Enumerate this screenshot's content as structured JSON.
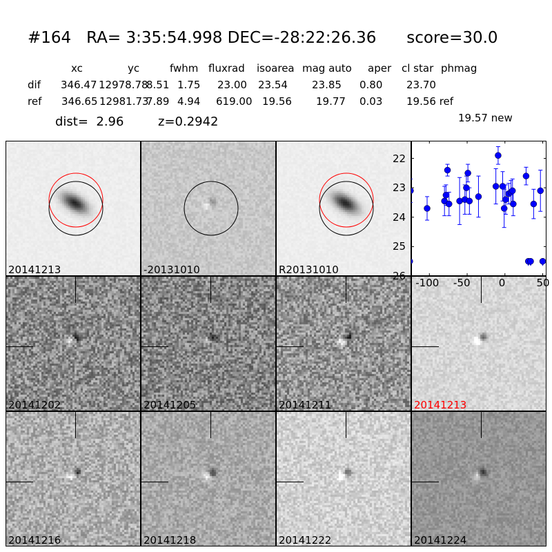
{
  "header": {
    "title": "#164   RA= 3:35:54.998 DEC=-28:22:26.36      score=30.0",
    "columns": [
      "xc",
      "yc",
      "fwhm",
      "fluxrad",
      "isoarea",
      "mag auto",
      "aper",
      "cl star",
      "phmag"
    ],
    "rows": [
      {
        "label": "dif",
        "values": [
          "346.47",
          "12978.78",
          "8.51",
          "1.75",
          "23.00",
          "23.54",
          "23.85",
          "0.80",
          "23.70"
        ]
      },
      {
        "label": "ref",
        "values": [
          "346.65",
          "12981.73",
          "7.89",
          "4.94",
          "619.00",
          "19.56",
          "19.77",
          "0.03",
          "19.56 ref"
        ]
      }
    ],
    "extra_phmag": "19.57 new",
    "dist": "dist=  2.96",
    "z": "z=0.2942"
  },
  "stamps_top": [
    {
      "label": "20141213",
      "circles": [
        "red",
        "black"
      ]
    },
    {
      "label": "-20131010",
      "circles": [
        "black"
      ]
    },
    {
      "label": "R20131010",
      "circles": [
        "red",
        "black"
      ]
    }
  ],
  "stamps_grid": [
    {
      "label": "20141202",
      "highlight": false
    },
    {
      "label": "20141205",
      "highlight": false
    },
    {
      "label": "20141211",
      "highlight": false
    },
    {
      "label": "20141213",
      "highlight": true
    },
    {
      "label": "20141216",
      "highlight": false
    },
    {
      "label": "20141218",
      "highlight": false
    },
    {
      "label": "20141222",
      "highlight": false
    },
    {
      "label": "20141224",
      "highlight": false
    }
  ],
  "chart_data": {
    "type": "scatter",
    "xlim": [
      -124,
      55
    ],
    "ylim": [
      26,
      21.4
    ],
    "y_inverted": true,
    "xticks": [
      -100,
      -50,
      0,
      50
    ],
    "yticks": [
      22,
      23,
      24,
      25,
      26
    ],
    "color": "#0000ff",
    "points": [
      {
        "x": -125,
        "y": 23.1,
        "err": 0.4
      },
      {
        "x": -103,
        "y": 23.7,
        "err": 0.4
      },
      {
        "x": -80,
        "y": 23.45,
        "err": 0.5
      },
      {
        "x": -78,
        "y": 23.25,
        "err": 0.35
      },
      {
        "x": -76,
        "y": 22.4,
        "err": 0.2
      },
      {
        "x": -74,
        "y": 23.55,
        "err": 0.4
      },
      {
        "x": -60,
        "y": 23.45,
        "err": 0.8
      },
      {
        "x": -53,
        "y": 23.4,
        "err": 0.5
      },
      {
        "x": -51,
        "y": 23.0,
        "err": 0.4
      },
      {
        "x": -49,
        "y": 22.5,
        "err": 0.3
      },
      {
        "x": -47,
        "y": 23.45,
        "err": 0.45
      },
      {
        "x": -35,
        "y": 23.3,
        "err": 0.7
      },
      {
        "x": -12,
        "y": 22.95,
        "err": 0.6
      },
      {
        "x": -9,
        "y": 21.9,
        "err": 0.3
      },
      {
        "x": -3,
        "y": 22.95,
        "err": 0.5
      },
      {
        "x": -1,
        "y": 23.7,
        "err": 0.65
      },
      {
        "x": 1,
        "y": 23.4,
        "err": 0.5
      },
      {
        "x": 5,
        "y": 23.2,
        "err": 0.35
      },
      {
        "x": 8,
        "y": 23.15,
        "err": 0.4
      },
      {
        "x": 10,
        "y": 23.1,
        "err": 0.4
      },
      {
        "x": 11,
        "y": 23.55,
        "err": 0.4
      },
      {
        "x": 28,
        "y": 22.6,
        "err": 0.3
      },
      {
        "x": 38,
        "y": 23.55,
        "err": 0.5
      },
      {
        "x": 47,
        "y": 23.1,
        "err": 0.7
      }
    ],
    "upper_limits": [
      {
        "x": -126,
        "y": 25.5
      },
      {
        "x": 31,
        "y": 25.5
      },
      {
        "x": 34,
        "y": 25.5
      },
      {
        "x": 50,
        "y": 25.5
      }
    ]
  }
}
